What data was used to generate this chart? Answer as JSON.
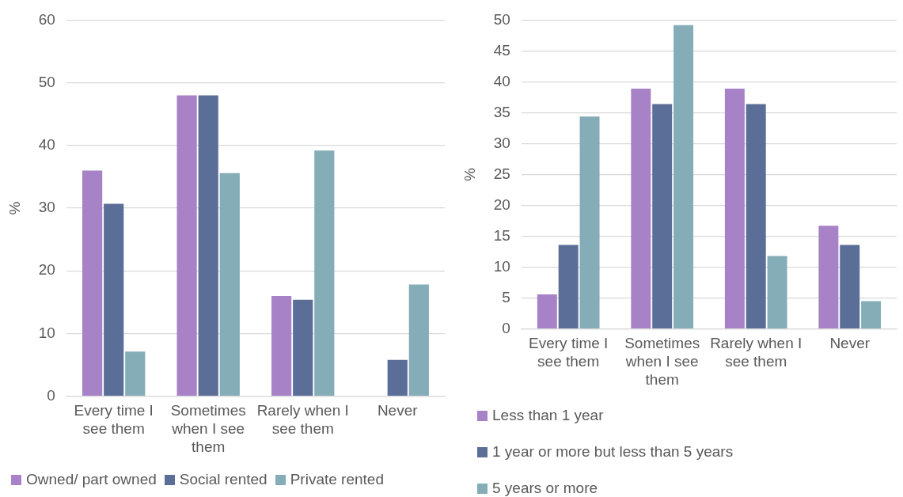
{
  "chart_data": [
    {
      "type": "bar",
      "ylabel": "%",
      "categories": [
        "Every time I see them",
        "Sometimes when I see them",
        "Rarely when I see them",
        "Never"
      ],
      "series": [
        {
          "name": "Owned/ part owned",
          "color": "#a882c6",
          "values": [
            36.0,
            48.0,
            16.0,
            null
          ]
        },
        {
          "name": "Social rented",
          "color": "#5b6e98",
          "values": [
            30.7,
            48.0,
            15.4,
            5.8
          ]
        },
        {
          "name": "Private rented",
          "color": "#84adb7",
          "values": [
            7.1,
            35.6,
            39.2,
            17.8
          ]
        }
      ],
      "ylim": [
        0,
        60
      ],
      "yticks": [
        0,
        10,
        20,
        30,
        40,
        50,
        60
      ],
      "grid": "y",
      "legend": "bottom"
    },
    {
      "type": "bar",
      "ylabel": "%",
      "categories": [
        "Every time I see them",
        "Sometimes when I see them",
        "Rarely when I see them",
        "Never"
      ],
      "series": [
        {
          "name": "Less than 1 year",
          "color": "#a882c6",
          "values": [
            5.6,
            38.9,
            38.9,
            16.7
          ]
        },
        {
          "name": "1 year or more but less than 5 years",
          "color": "#5b6e98",
          "values": [
            13.6,
            36.4,
            36.4,
            13.6
          ]
        },
        {
          "name": "5 years or more",
          "color": "#84adb7",
          "values": [
            34.4,
            49.2,
            11.8,
            4.5
          ]
        }
      ],
      "ylim": [
        0,
        50
      ],
      "yticks": [
        0,
        5,
        10,
        15,
        20,
        25,
        30,
        35,
        40,
        45,
        50
      ],
      "grid": "y",
      "legend": "bottom"
    }
  ]
}
